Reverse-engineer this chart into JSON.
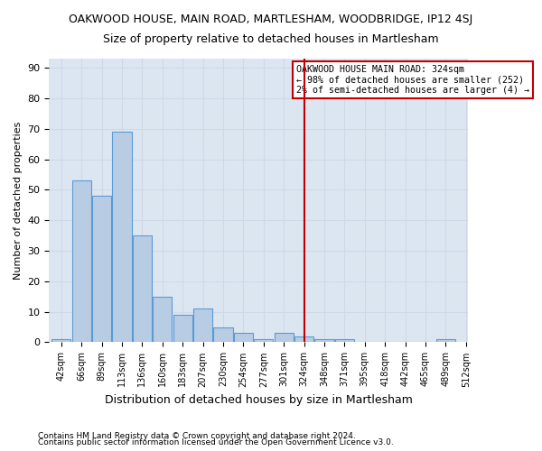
{
  "title": "OAKWOOD HOUSE, MAIN ROAD, MARTLESHAM, WOODBRIDGE, IP12 4SJ",
  "subtitle": "Size of property relative to detached houses in Martlesham",
  "xlabel": "Distribution of detached houses by size in Martlesham",
  "ylabel": "Number of detached properties",
  "footer_line1": "Contains HM Land Registry data © Crown copyright and database right 2024.",
  "footer_line2": "Contains public sector information licensed under the Open Government Licence v3.0.",
  "bin_labels": [
    "42sqm",
    "66sqm",
    "89sqm",
    "113sqm",
    "136sqm",
    "160sqm",
    "183sqm",
    "207sqm",
    "230sqm",
    "254sqm",
    "277sqm",
    "301sqm",
    "324sqm",
    "348sqm",
    "371sqm",
    "395sqm",
    "418sqm",
    "442sqm",
    "465sqm",
    "489sqm",
    "512sqm"
  ],
  "bar_values": [
    1,
    53,
    48,
    69,
    35,
    15,
    9,
    11,
    5,
    3,
    1,
    3,
    2,
    1,
    1,
    0,
    0,
    0,
    0,
    1
  ],
  "bar_color": "#b8cce4",
  "bar_edge_color": "#5b9bd5",
  "grid_color": "#d0d8e8",
  "background_color": "#dce6f1",
  "vline_label": "324sqm",
  "vline_color": "#c00000",
  "annotation_text": "OAKWOOD HOUSE MAIN ROAD: 324sqm\n← 98% of detached houses are smaller (252)\n2% of semi-detached houses are larger (4) →",
  "annotation_box_color": "#c00000",
  "ylim": [
    0,
    93
  ],
  "yticks": [
    0,
    10,
    20,
    30,
    40,
    50,
    60,
    70,
    80,
    90
  ]
}
